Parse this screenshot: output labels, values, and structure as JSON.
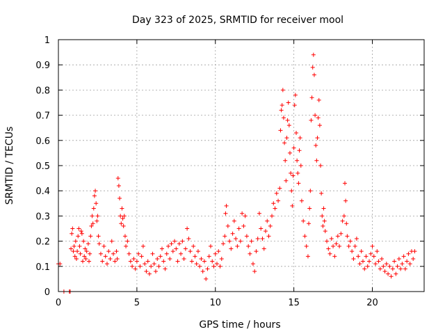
{
  "chart_data": {
    "type": "scatter",
    "title": "Day 323 of 2025, SRMTID for receiver mool",
    "xlabel": "GPS time / hours",
    "ylabel": "SRMTID / TECUs",
    "xlim": [
      0,
      23.3
    ],
    "ylim": [
      0,
      1
    ],
    "grid": true,
    "marker": "plus",
    "marker_color": "#ff0000",
    "x_ticks": [
      {
        "value": 0,
        "label": "0"
      },
      {
        "value": 5,
        "label": "5"
      },
      {
        "value": 10,
        "label": "10"
      },
      {
        "value": 15,
        "label": "15"
      },
      {
        "value": 20,
        "label": "20"
      }
    ],
    "y_ticks": [
      {
        "value": 0,
        "label": "0"
      },
      {
        "value": 0.1,
        "label": "0.1"
      },
      {
        "value": 0.2,
        "label": "0.2"
      },
      {
        "value": 0.3,
        "label": "0.3"
      },
      {
        "value": 0.4,
        "label": "0.4"
      },
      {
        "value": 0.5,
        "label": "0.5"
      },
      {
        "value": 0.6,
        "label": "0.6"
      },
      {
        "value": 0.7,
        "label": "0.7"
      },
      {
        "value": 0.8,
        "label": "0.8"
      },
      {
        "value": 0.9,
        "label": "0.9"
      },
      {
        "value": 1,
        "label": "1"
      }
    ],
    "series": [
      {
        "name": "SRMTID",
        "points": [
          [
            0.0,
            0.11
          ],
          [
            0.1,
            0.11
          ],
          [
            0.35,
            0.0
          ],
          [
            0.7,
            0.0
          ],
          [
            0.75,
            0.0
          ],
          [
            0.8,
            0.17
          ],
          [
            0.85,
            0.23
          ],
          [
            0.9,
            0.25
          ],
          [
            0.95,
            0.16
          ],
          [
            1.0,
            0.18
          ],
          [
            1.05,
            0.14
          ],
          [
            1.1,
            0.2
          ],
          [
            1.15,
            0.13
          ],
          [
            1.2,
            0.16
          ],
          [
            1.25,
            0.22
          ],
          [
            1.3,
            0.25
          ],
          [
            1.35,
            0.18
          ],
          [
            1.4,
            0.15
          ],
          [
            1.45,
            0.24
          ],
          [
            1.5,
            0.23
          ],
          [
            1.55,
            0.12
          ],
          [
            1.6,
            0.2
          ],
          [
            1.65,
            0.14
          ],
          [
            1.7,
            0.17
          ],
          [
            1.75,
            0.13
          ],
          [
            1.8,
            0.16
          ],
          [
            1.9,
            0.19
          ],
          [
            1.95,
            0.12
          ],
          [
            2.0,
            0.15
          ],
          [
            2.05,
            0.22
          ],
          [
            2.1,
            0.26
          ],
          [
            2.15,
            0.3
          ],
          [
            2.2,
            0.27
          ],
          [
            2.25,
            0.33
          ],
          [
            2.3,
            0.38
          ],
          [
            2.35,
            0.4
          ],
          [
            2.4,
            0.35
          ],
          [
            2.45,
            0.28
          ],
          [
            2.5,
            0.3
          ],
          [
            2.55,
            0.22
          ],
          [
            2.6,
            0.19
          ],
          [
            2.7,
            0.15
          ],
          [
            2.8,
            0.12
          ],
          [
            2.9,
            0.18
          ],
          [
            3.0,
            0.14
          ],
          [
            3.1,
            0.11
          ],
          [
            3.2,
            0.16
          ],
          [
            3.3,
            0.13
          ],
          [
            3.4,
            0.2
          ],
          [
            3.5,
            0.15
          ],
          [
            3.6,
            0.12
          ],
          [
            3.7,
            0.16
          ],
          [
            3.75,
            0.13
          ],
          [
            3.8,
            0.45
          ],
          [
            3.85,
            0.42
          ],
          [
            3.9,
            0.37
          ],
          [
            3.95,
            0.3
          ],
          [
            4.0,
            0.27
          ],
          [
            4.05,
            0.33
          ],
          [
            4.1,
            0.29
          ],
          [
            4.15,
            0.26
          ],
          [
            4.2,
            0.3
          ],
          [
            4.25,
            0.22
          ],
          [
            4.3,
            0.18
          ],
          [
            4.4,
            0.2
          ],
          [
            4.5,
            0.15
          ],
          [
            4.6,
            0.12
          ],
          [
            4.7,
            0.1
          ],
          [
            4.8,
            0.13
          ],
          [
            4.9,
            0.09
          ],
          [
            5.0,
            0.12
          ],
          [
            5.1,
            0.15
          ],
          [
            5.2,
            0.1
          ],
          [
            5.3,
            0.14
          ],
          [
            5.4,
            0.18
          ],
          [
            5.5,
            0.11
          ],
          [
            5.6,
            0.08
          ],
          [
            5.7,
            0.12
          ],
          [
            5.8,
            0.07
          ],
          [
            5.9,
            0.1
          ],
          [
            6.0,
            0.15
          ],
          [
            6.1,
            0.11
          ],
          [
            6.2,
            0.08
          ],
          [
            6.3,
            0.13
          ],
          [
            6.4,
            0.1
          ],
          [
            6.5,
            0.14
          ],
          [
            6.6,
            0.17
          ],
          [
            6.7,
            0.12
          ],
          [
            6.8,
            0.09
          ],
          [
            6.9,
            0.15
          ],
          [
            7.0,
            0.18
          ],
          [
            7.1,
            0.13
          ],
          [
            7.2,
            0.19
          ],
          [
            7.3,
            0.16
          ],
          [
            7.4,
            0.2
          ],
          [
            7.5,
            0.17
          ],
          [
            7.6,
            0.12
          ],
          [
            7.7,
            0.19
          ],
          [
            7.8,
            0.15
          ],
          [
            7.9,
            0.2
          ],
          [
            8.0,
            0.13
          ],
          [
            8.1,
            0.17
          ],
          [
            8.2,
            0.25
          ],
          [
            8.3,
            0.21
          ],
          [
            8.4,
            0.16
          ],
          [
            8.5,
            0.12
          ],
          [
            8.6,
            0.18
          ],
          [
            8.7,
            0.14
          ],
          [
            8.8,
            0.11
          ],
          [
            8.9,
            0.16
          ],
          [
            9.0,
            0.1
          ],
          [
            9.1,
            0.13
          ],
          [
            9.2,
            0.08
          ],
          [
            9.3,
            0.12
          ],
          [
            9.4,
            0.05
          ],
          [
            9.5,
            0.09
          ],
          [
            9.6,
            0.14
          ],
          [
            9.7,
            0.18
          ],
          [
            9.8,
            0.12
          ],
          [
            9.9,
            0.1
          ],
          [
            10.0,
            0.15
          ],
          [
            10.1,
            0.11
          ],
          [
            10.2,
            0.16
          ],
          [
            10.3,
            0.1
          ],
          [
            10.4,
            0.13
          ],
          [
            10.5,
            0.19
          ],
          [
            10.6,
            0.22
          ],
          [
            10.65,
            0.31
          ],
          [
            10.7,
            0.34
          ],
          [
            10.8,
            0.26
          ],
          [
            10.9,
            0.2
          ],
          [
            11.0,
            0.17
          ],
          [
            11.1,
            0.23
          ],
          [
            11.2,
            0.28
          ],
          [
            11.3,
            0.21
          ],
          [
            11.4,
            0.18
          ],
          [
            11.5,
            0.25
          ],
          [
            11.6,
            0.2
          ],
          [
            11.7,
            0.31
          ],
          [
            11.8,
            0.26
          ],
          [
            11.9,
            0.3
          ],
          [
            12.0,
            0.22
          ],
          [
            12.1,
            0.18
          ],
          [
            12.2,
            0.15
          ],
          [
            12.3,
            0.2
          ],
          [
            12.4,
            0.11
          ],
          [
            12.5,
            0.08
          ],
          [
            12.6,
            0.16
          ],
          [
            12.7,
            0.21
          ],
          [
            12.8,
            0.31
          ],
          [
            12.9,
            0.25
          ],
          [
            13.0,
            0.21
          ],
          [
            13.1,
            0.17
          ],
          [
            13.2,
            0.24
          ],
          [
            13.3,
            0.28
          ],
          [
            13.4,
            0.22
          ],
          [
            13.5,
            0.26
          ],
          [
            13.6,
            0.3
          ],
          [
            13.7,
            0.35
          ],
          [
            13.8,
            0.33
          ],
          [
            13.9,
            0.39
          ],
          [
            14.0,
            0.36
          ],
          [
            14.1,
            0.41
          ],
          [
            14.15,
            0.64
          ],
          [
            14.2,
            0.72
          ],
          [
            14.25,
            0.74
          ],
          [
            14.3,
            0.8
          ],
          [
            14.35,
            0.69
          ],
          [
            14.4,
            0.59
          ],
          [
            14.45,
            0.52
          ],
          [
            14.5,
            0.44
          ],
          [
            14.55,
            0.61
          ],
          [
            14.6,
            0.68
          ],
          [
            14.65,
            0.75
          ],
          [
            14.7,
            0.66
          ],
          [
            14.75,
            0.55
          ],
          [
            14.8,
            0.47
          ],
          [
            14.85,
            0.4
          ],
          [
            14.9,
            0.34
          ],
          [
            14.95,
            0.46
          ],
          [
            15.0,
            0.57
          ],
          [
            15.05,
            0.74
          ],
          [
            15.1,
            0.78
          ],
          [
            15.15,
            0.63
          ],
          [
            15.2,
            0.52
          ],
          [
            15.25,
            0.47
          ],
          [
            15.3,
            0.43
          ],
          [
            15.35,
            0.56
          ],
          [
            15.4,
            0.61
          ],
          [
            15.45,
            0.5
          ],
          [
            15.5,
            0.36
          ],
          [
            15.6,
            0.28
          ],
          [
            15.7,
            0.22
          ],
          [
            15.8,
            0.18
          ],
          [
            15.9,
            0.14
          ],
          [
            15.95,
            0.27
          ],
          [
            16.0,
            0.33
          ],
          [
            16.05,
            0.4
          ],
          [
            16.1,
            0.68
          ],
          [
            16.15,
            0.77
          ],
          [
            16.2,
            0.89
          ],
          [
            16.25,
            0.94
          ],
          [
            16.3,
            0.86
          ],
          [
            16.35,
            0.7
          ],
          [
            16.4,
            0.58
          ],
          [
            16.45,
            0.52
          ],
          [
            16.5,
            0.61
          ],
          [
            16.55,
            0.69
          ],
          [
            16.6,
            0.76
          ],
          [
            16.65,
            0.66
          ],
          [
            16.7,
            0.5
          ],
          [
            16.75,
            0.39
          ],
          [
            16.8,
            0.3
          ],
          [
            16.85,
            0.26
          ],
          [
            16.9,
            0.33
          ],
          [
            16.95,
            0.28
          ],
          [
            17.0,
            0.24
          ],
          [
            17.1,
            0.2
          ],
          [
            17.2,
            0.17
          ],
          [
            17.3,
            0.15
          ],
          [
            17.4,
            0.21
          ],
          [
            17.5,
            0.18
          ],
          [
            17.6,
            0.14
          ],
          [
            17.7,
            0.19
          ],
          [
            17.8,
            0.22
          ],
          [
            17.9,
            0.18
          ],
          [
            18.0,
            0.23
          ],
          [
            18.1,
            0.28
          ],
          [
            18.2,
            0.3
          ],
          [
            18.25,
            0.43
          ],
          [
            18.3,
            0.36
          ],
          [
            18.35,
            0.27
          ],
          [
            18.4,
            0.22
          ],
          [
            18.5,
            0.18
          ],
          [
            18.6,
            0.2
          ],
          [
            18.7,
            0.16
          ],
          [
            18.8,
            0.13
          ],
          [
            18.9,
            0.18
          ],
          [
            19.0,
            0.21
          ],
          [
            19.1,
            0.14
          ],
          [
            19.2,
            0.11
          ],
          [
            19.3,
            0.16
          ],
          [
            19.4,
            0.12
          ],
          [
            19.5,
            0.09
          ],
          [
            19.6,
            0.14
          ],
          [
            19.7,
            0.1
          ],
          [
            19.8,
            0.12
          ],
          [
            19.9,
            0.15
          ],
          [
            20.0,
            0.18
          ],
          [
            20.1,
            0.14
          ],
          [
            20.2,
            0.11
          ],
          [
            20.3,
            0.16
          ],
          [
            20.4,
            0.12
          ],
          [
            20.5,
            0.09
          ],
          [
            20.6,
            0.13
          ],
          [
            20.7,
            0.1
          ],
          [
            20.8,
            0.08
          ],
          [
            20.9,
            0.11
          ],
          [
            21.0,
            0.07
          ],
          [
            21.1,
            0.1
          ],
          [
            21.2,
            0.06
          ],
          [
            21.3,
            0.09
          ],
          [
            21.4,
            0.12
          ],
          [
            21.5,
            0.07
          ],
          [
            21.6,
            0.1
          ],
          [
            21.7,
            0.13
          ],
          [
            21.8,
            0.09
          ],
          [
            21.9,
            0.11
          ],
          [
            22.0,
            0.14
          ],
          [
            22.1,
            0.09
          ],
          [
            22.2,
            0.12
          ],
          [
            22.3,
            0.15
          ],
          [
            22.4,
            0.11
          ],
          [
            22.5,
            0.16
          ],
          [
            22.6,
            0.13
          ],
          [
            22.7,
            0.16
          ]
        ]
      }
    ]
  }
}
